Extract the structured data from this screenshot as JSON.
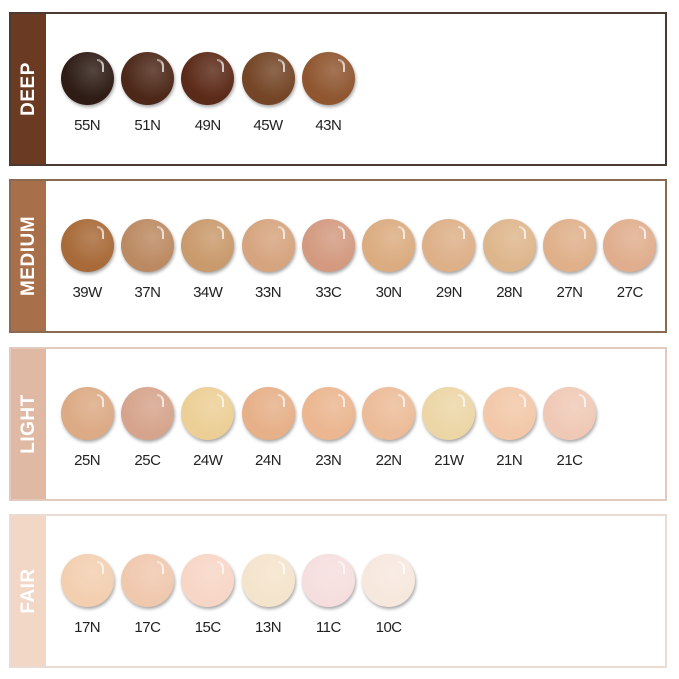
{
  "groups": [
    {
      "label": "DEEP",
      "band_color": "#6b3a22",
      "border_color": "#4a3a30",
      "shades": [
        {
          "code": "55N",
          "color": "#2e1c15"
        },
        {
          "code": "51N",
          "color": "#4d2818"
        },
        {
          "code": "49N",
          "color": "#5c2a18"
        },
        {
          "code": "45W",
          "color": "#744526"
        },
        {
          "code": "43N",
          "color": "#8f5630"
        }
      ]
    },
    {
      "label": "MEDIUM",
      "band_color": "#a8704a",
      "border_color": "#8a6a50",
      "shades": [
        {
          "code": "39W",
          "color": "#a86a38"
        },
        {
          "code": "37N",
          "color": "#bc8a62"
        },
        {
          "code": "34W",
          "color": "#c99a6c"
        },
        {
          "code": "33N",
          "color": "#d6a47e"
        },
        {
          "code": "33C",
          "color": "#d39a80"
        },
        {
          "code": "30N",
          "color": "#dbac80"
        },
        {
          "code": "29N",
          "color": "#ddb088"
        },
        {
          "code": "28N",
          "color": "#deb68c"
        },
        {
          "code": "27N",
          "color": "#dfb08a"
        },
        {
          "code": "27C",
          "color": "#e0ae8e"
        }
      ]
    },
    {
      "label": "LIGHT",
      "band_color": "#e0b9a4",
      "border_color": "#e2cbbd",
      "shades": [
        {
          "code": "25N",
          "color": "#dcaa84"
        },
        {
          "code": "25C",
          "color": "#d6a48c"
        },
        {
          "code": "24W",
          "color": "#eccf96"
        },
        {
          "code": "24N",
          "color": "#e6b088"
        },
        {
          "code": "23N",
          "color": "#ebb690"
        },
        {
          "code": "22N",
          "color": "#ecbc98"
        },
        {
          "code": "21W",
          "color": "#ecd6a6"
        },
        {
          "code": "21N",
          "color": "#f2c8a8"
        },
        {
          "code": "21C",
          "color": "#f0c9b6"
        }
      ]
    },
    {
      "label": "FAIR",
      "band_color": "#f2d6c6",
      "border_color": "#eadcd2",
      "shades": [
        {
          "code": "17N",
          "color": "#f3cfb0"
        },
        {
          "code": "17C",
          "color": "#f0c8ae"
        },
        {
          "code": "15C",
          "color": "#f7d6c6"
        },
        {
          "code": "13N",
          "color": "#f5e4cc"
        },
        {
          "code": "11C",
          "color": "#f6dede"
        },
        {
          "code": "10C",
          "color": "#f7e8de"
        }
      ]
    }
  ]
}
